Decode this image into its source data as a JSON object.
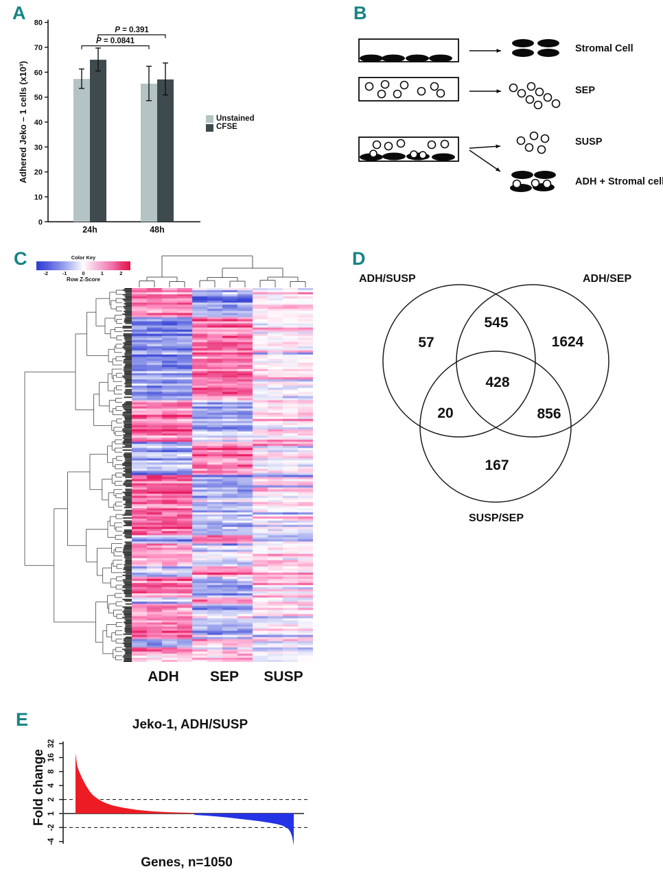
{
  "accent_color": "#178383",
  "panels": {
    "a": {
      "letter": "A"
    },
    "b": {
      "letter": "B",
      "items": [
        {
          "label": "Stromal Cell"
        },
        {
          "label": "SEP"
        },
        {
          "label": "SUSP"
        },
        {
          "label": "ADH + Stromal cell"
        }
      ]
    },
    "c": {
      "letter": "C"
    },
    "d": {
      "letter": "D"
    },
    "e": {
      "letter": "E"
    }
  },
  "chart_data": [
    {
      "id": "A",
      "type": "bar",
      "categories": [
        "24h",
        "48h"
      ],
      "series": [
        {
          "name": "Unstained",
          "color": "#b4c3c3",
          "values": [
            57.3,
            55.4
          ],
          "errors_up": [
            4.0,
            7.0
          ],
          "errors_down": [
            3.8,
            6.8
          ]
        },
        {
          "name": "CFSE",
          "color": "#3e4a4d",
          "values": [
            65.0,
            57.1
          ],
          "errors_up": [
            4.7,
            6.6
          ],
          "errors_down": [
            4.5,
            6.2
          ]
        }
      ],
      "ylabel": "Adhered Jeko – 1 cells (x10³)",
      "ylim": [
        0,
        80
      ],
      "ytick_step": 10,
      "legend": [
        "Unstained",
        "CFSE"
      ],
      "comparisons": [
        {
          "p_symbol": "P",
          "p_value": " = 0.0841",
          "series": 0,
          "bracket_y": 70.6
        },
        {
          "p_symbol": "P",
          "p_value": " = 0.391",
          "series": 1,
          "bracket_y": 75.0
        }
      ]
    },
    {
      "id": "C",
      "type": "heatmap",
      "columns": [
        "ADH",
        "SEP",
        "SUSP"
      ],
      "samples_per_group": 4,
      "n_rows": 180,
      "color_key": {
        "title": "Color Key",
        "label": "Row Z-Score",
        "ticks": [
          "-2",
          "-1",
          "0",
          "1",
          "2"
        ],
        "range": [
          -2.5,
          2.5
        ]
      },
      "row_blocks": [
        [
          0.08,
          1.5,
          -1.2,
          0.25
        ],
        [
          0.22,
          -1.3,
          1.4,
          0.1
        ],
        [
          0.11,
          1.3,
          -1.0,
          0.2
        ],
        [
          0.09,
          -1.2,
          1.3,
          0.1
        ],
        [
          0.16,
          1.5,
          -1.0,
          0.15
        ],
        [
          0.02,
          -1.0,
          1.2,
          0.1
        ],
        [
          0.06,
          1.1,
          -0.4,
          0.2
        ],
        [
          0.025,
          -0.9,
          1.1,
          0.15
        ],
        [
          0.055,
          1.2,
          -0.8,
          0.2
        ],
        [
          0.016,
          -0.8,
          1.0,
          0.1
        ],
        [
          0.094,
          1.2,
          -0.7,
          0.2
        ],
        [
          0.02,
          -0.8,
          1.0,
          0.1
        ],
        [
          0.05,
          0.9,
          0.3,
          0.0
        ]
      ]
    },
    {
      "id": "D",
      "type": "venn",
      "sets": [
        "ADH/SUSP",
        "ADH/SEP",
        "SUSP/SEP"
      ],
      "regions": [
        {
          "name": "ADH/SUSP only",
          "value": "57"
        },
        {
          "name": "ADH/SEP only",
          "value": "1624"
        },
        {
          "name": "SUSP/SEP only",
          "value": "167"
        },
        {
          "name": "ADH/SUSP and ADH/SEP",
          "value": "545"
        },
        {
          "name": "ADH/SUSP and SUSP/SEP",
          "value": "20"
        },
        {
          "name": "ADH/SEP and SUSP/SEP",
          "value": "856"
        },
        {
          "name": "all three",
          "value": "428"
        }
      ]
    },
    {
      "id": "E",
      "type": "area",
      "title": "Jeko-1, ADH/SUSP",
      "ylabel": "Fold change",
      "xlabel": "Genes, n=1050",
      "n_genes": 1050,
      "yticks": [
        "32",
        "16",
        "8",
        "4",
        "2",
        "1",
        "-2",
        "-4"
      ],
      "guide_lines": [
        2,
        -2
      ],
      "baseline": 1,
      "up_color": "#ed1c24",
      "down_color": "#2533e6",
      "up_series": [
        [
          0,
          20
        ],
        [
          0.004,
          14
        ],
        [
          0.008,
          10.5
        ],
        [
          0.016,
          8.2
        ],
        [
          0.03,
          5.8
        ],
        [
          0.047,
          4.1
        ],
        [
          0.063,
          3.1
        ],
        [
          0.079,
          2.5
        ],
        [
          0.094,
          2.2
        ],
        [
          0.11,
          1.95
        ],
        [
          0.126,
          1.78
        ],
        [
          0.142,
          1.65
        ],
        [
          0.173,
          1.48
        ],
        [
          0.22,
          1.33
        ],
        [
          0.28,
          1.2
        ],
        [
          0.35,
          1.12
        ],
        [
          0.42,
          1.07
        ],
        [
          0.5,
          1.04
        ],
        [
          0.544,
          1.03
        ]
      ],
      "down_series": [
        [
          0.544,
          -1.07
        ],
        [
          0.6,
          -1.11
        ],
        [
          0.65,
          -1.16
        ],
        [
          0.7,
          -1.22
        ],
        [
          0.75,
          -1.3
        ],
        [
          0.8,
          -1.38
        ],
        [
          0.85,
          -1.48
        ],
        [
          0.89,
          -1.58
        ],
        [
          0.92,
          -1.68
        ],
        [
          0.945,
          -1.8
        ],
        [
          0.962,
          -1.95
        ],
        [
          0.975,
          -2.15
        ],
        [
          0.985,
          -2.5
        ],
        [
          0.992,
          -3.1
        ],
        [
          0.997,
          -4.0
        ],
        [
          1.0,
          -4.8
        ]
      ]
    }
  ]
}
